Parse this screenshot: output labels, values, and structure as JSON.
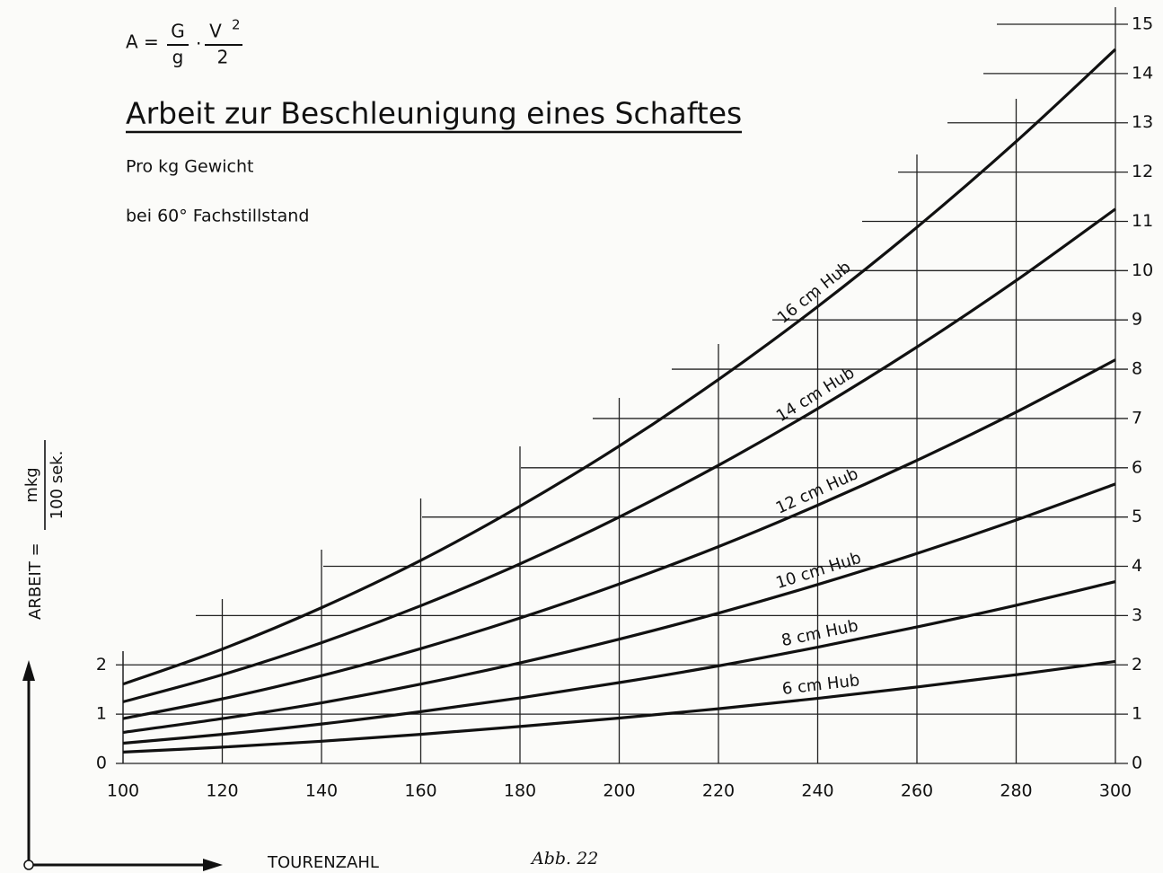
{
  "chart_data": {
    "type": "line",
    "formula": {
      "lhs": "A =",
      "num1": "G",
      "den1": "g",
      "dot": "·",
      "num2": "V",
      "exp": "2",
      "den2": "2"
    },
    "title": "Arbeit zur Beschleunigung eines Schaftes",
    "subtitle": [
      "Pro kg Gewicht",
      "bei 60° Fachstillstand"
    ],
    "y_label": {
      "text": "ARBEIT =",
      "num": "mkg",
      "den": "100 sek."
    },
    "x_label": "TOURENZAHL",
    "figure_label": "Abb. 22",
    "x": [
      100,
      120,
      140,
      160,
      180,
      200,
      220,
      240,
      260,
      280,
      300
    ],
    "xlim": [
      100,
      300
    ],
    "xticks": [
      100,
      120,
      140,
      160,
      180,
      200,
      220,
      240,
      260,
      280,
      300
    ],
    "ylim": [
      0,
      15
    ],
    "yticks": [
      0,
      1,
      2,
      3,
      4,
      5,
      6,
      7,
      8,
      9,
      10,
      11,
      12,
      13,
      14,
      15
    ],
    "y2lim": [
      0,
      15
    ],
    "y2ticks": [
      0,
      1,
      2
    ],
    "grid": true,
    "series": [
      {
        "name": "16 cm Hub",
        "color": "#111111",
        "values": [
          1.61,
          2.32,
          3.16,
          4.12,
          5.22,
          6.44,
          7.79,
          9.27,
          10.88,
          12.62,
          14.49
        ]
      },
      {
        "name": "14 cm Hub",
        "color": "#111111",
        "values": [
          1.25,
          1.8,
          2.45,
          3.2,
          4.05,
          5.0,
          6.05,
          7.2,
          8.45,
          9.8,
          11.25
        ]
      },
      {
        "name": "12 cm Hub",
        "color": "#111111",
        "values": [
          0.91,
          1.31,
          1.78,
          2.33,
          2.95,
          3.64,
          4.4,
          5.24,
          6.15,
          7.13,
          8.19
        ]
      },
      {
        "name": "10 cm Hub",
        "color": "#111111",
        "values": [
          0.63,
          0.91,
          1.23,
          1.61,
          2.04,
          2.52,
          3.05,
          3.63,
          4.26,
          4.94,
          5.67
        ]
      },
      {
        "name": "8 cm Hub",
        "color": "#111111",
        "values": [
          0.41,
          0.59,
          0.8,
          1.05,
          1.33,
          1.64,
          1.98,
          2.36,
          2.77,
          3.21,
          3.69
        ]
      },
      {
        "name": "6 cm Hub",
        "color": "#111111",
        "values": [
          0.23,
          0.33,
          0.45,
          0.59,
          0.75,
          0.92,
          1.11,
          1.32,
          1.55,
          1.8,
          2.07
        ]
      }
    ]
  }
}
